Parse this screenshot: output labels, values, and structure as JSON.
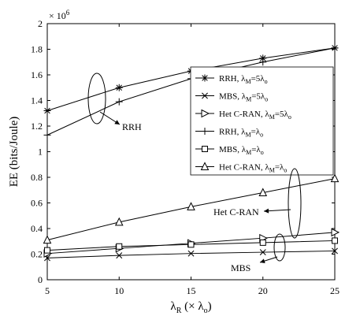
{
  "chart_data": {
    "type": "line",
    "xlabel_main": "λ",
    "xlabel_sub": "R",
    "xlabel_tail": " (× λ",
    "xlabel_sub2": "o",
    "xlabel_close": ")",
    "ylabel": "EE (bits/Joule)",
    "y_multiplier": "× 10",
    "y_multiplier_exp": "6",
    "x": [
      5,
      10,
      15,
      20,
      25
    ],
    "xlim": [
      5,
      25
    ],
    "ylim": [
      0,
      2
    ],
    "x_ticks": [
      5,
      10,
      15,
      20,
      25
    ],
    "y_ticks": [
      0,
      0.2,
      0.4,
      0.6,
      0.8,
      1,
      1.2,
      1.4,
      1.6,
      1.8,
      2
    ],
    "grid": false,
    "legend_position": "right",
    "series": [
      {
        "name": "RRH,  λM=5λo",
        "label": "RRH,",
        "lambda": "λ",
        "lambda_sub": "M",
        "eq": "=5λ",
        "eq_sub": "o",
        "marker": "asterisk",
        "values": [
          1.32,
          1.5,
          1.63,
          1.73,
          1.81
        ]
      },
      {
        "name": "MBS,  λM=5λo",
        "label": "MBS,",
        "lambda": "λ",
        "lambda_sub": "M",
        "eq": "=5λ",
        "eq_sub": "o",
        "marker": "x",
        "values": [
          0.17,
          0.19,
          0.205,
          0.215,
          0.225
        ]
      },
      {
        "name": "Het C-RAN,  λM=5λo",
        "label": "Het C-RAN,",
        "lambda": "λ",
        "lambda_sub": "M",
        "eq": "=5λ",
        "eq_sub": "o",
        "marker": "triangle-right",
        "values": [
          0.205,
          0.245,
          0.285,
          0.325,
          0.37
        ]
      },
      {
        "name": "RRH,  λM=λo",
        "label": "RRH,",
        "lambda": "λ",
        "lambda_sub": "M",
        "eq": "=λ",
        "eq_sub": "o",
        "marker": "plus",
        "values": [
          1.13,
          1.39,
          1.57,
          1.7,
          1.81
        ]
      },
      {
        "name": "MBS,  λM=λo",
        "label": "MBS,",
        "lambda": "λ",
        "lambda_sub": "M",
        "eq": "=λ",
        "eq_sub": "o",
        "marker": "square",
        "values": [
          0.23,
          0.26,
          0.275,
          0.29,
          0.305
        ]
      },
      {
        "name": "Het C-RAN,  λM=λo",
        "label": "Het C-RAN,",
        "lambda": "λ",
        "lambda_sub": "M",
        "eq": "=λ",
        "eq_sub": "o",
        "marker": "triangle-up",
        "values": [
          0.31,
          0.45,
          0.57,
          0.68,
          0.79
        ]
      }
    ],
    "annotations": [
      {
        "text": "RRH"
      },
      {
        "text": "Het C-RAN"
      },
      {
        "text": "MBS"
      }
    ]
  }
}
